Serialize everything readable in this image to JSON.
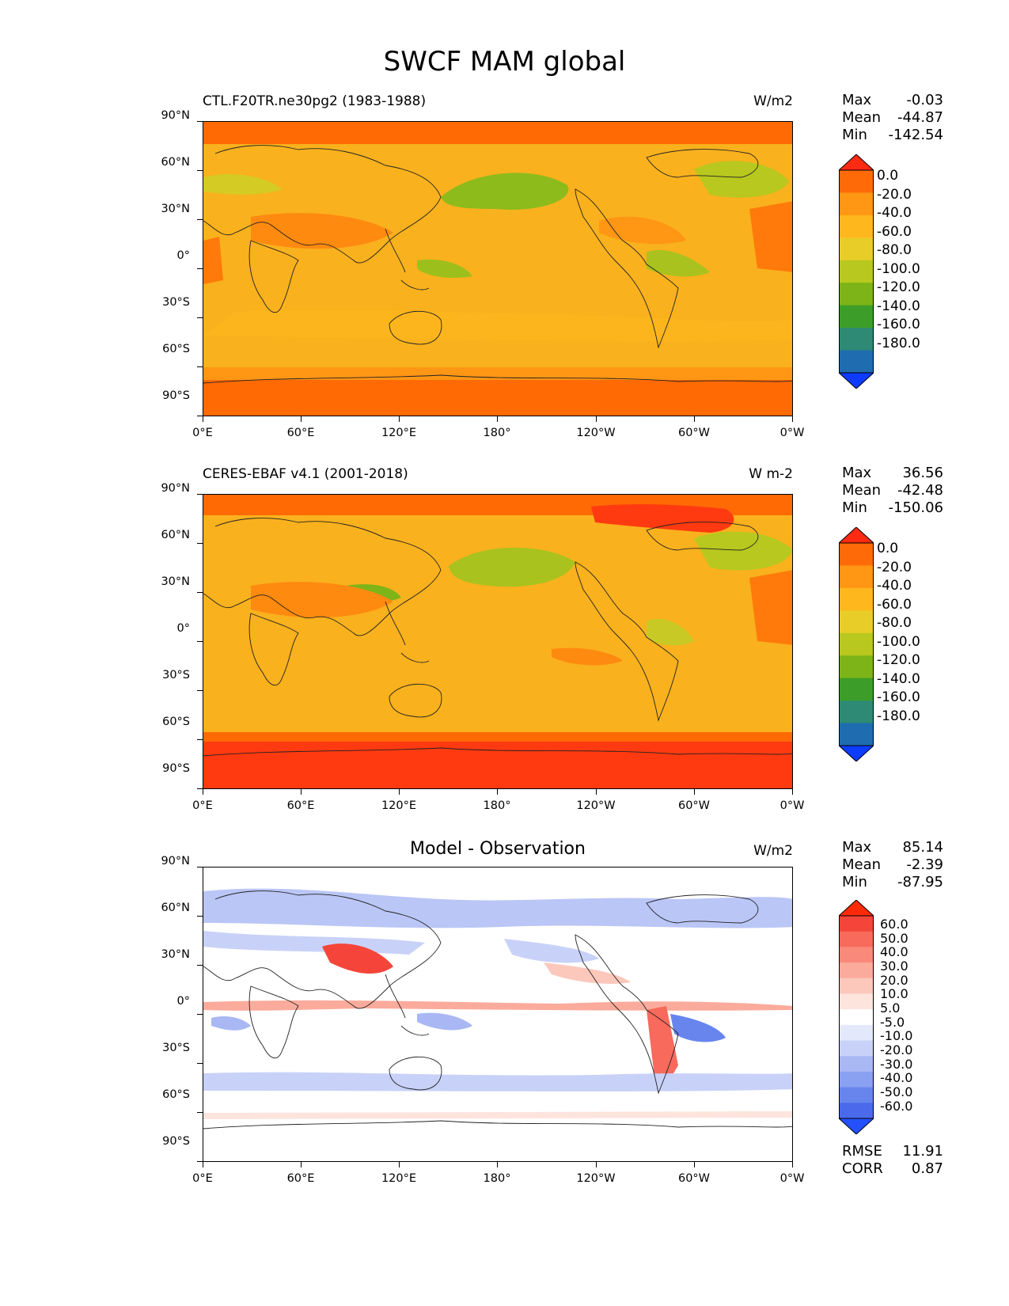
{
  "title": "SWCF MAM global",
  "axes": {
    "lat_labels": [
      "90°N",
      "60°N",
      "30°N",
      "0°",
      "30°S",
      "60°S",
      "90°S"
    ],
    "lon_labels": [
      "0°E",
      "60°E",
      "120°E",
      "180°",
      "120°W",
      "60°W",
      "0°W"
    ]
  },
  "panels": [
    {
      "id": "model",
      "left_title": "CTL.F20TR.ne30pg2 (1983-1988)",
      "units": "W/m2",
      "stats": {
        "max_label": "Max",
        "max": "-0.03",
        "mean_label": "Mean",
        "mean": "-44.87",
        "min_label": "Min",
        "min": "-142.54"
      },
      "colorbar": {
        "labels": [
          "0.0",
          "-20.0",
          "-40.0",
          "-60.0",
          "-80.0",
          "-100.0",
          "-120.0",
          "-140.0",
          "-160.0",
          "-180.0"
        ],
        "colors": [
          "#ff2a12",
          "#ff6a08",
          "#ff9614",
          "#ffb71e",
          "#e8cd28",
          "#b8c81e",
          "#7db418",
          "#3c9e28",
          "#2e8a74",
          "#1f6db0",
          "#0d3cff"
        ]
      },
      "map": {
        "ocean": "#f9b11d",
        "polar_band": "#ff6a05",
        "accent_low": "#9dbf1c"
      }
    },
    {
      "id": "obs",
      "left_title": "CERES-EBAF v4.1 (2001-2018)",
      "units": "W m-2",
      "stats": {
        "max_label": "Max",
        "max": "36.56",
        "mean_label": "Mean",
        "mean": "-42.48",
        "min_label": "Min",
        "min": "-150.06"
      },
      "colorbar": {
        "labels": [
          "0.0",
          "-20.0",
          "-40.0",
          "-60.0",
          "-80.0",
          "-100.0",
          "-120.0",
          "-140.0",
          "-160.0",
          "-180.0"
        ],
        "colors": [
          "#ff2a12",
          "#ff6a08",
          "#ff9614",
          "#ffb71e",
          "#e8cd28",
          "#b8c81e",
          "#7db418",
          "#3c9e28",
          "#2e8a74",
          "#1f6db0",
          "#0d3cff"
        ]
      },
      "map": {
        "ocean": "#f9b11d",
        "polar_band": "#ff3a10",
        "accent_low": "#a9c21e"
      }
    },
    {
      "id": "diff",
      "center_title": "Model - Observation",
      "units": "W/m2",
      "stats": {
        "max_label": "Max",
        "max": "85.14",
        "mean_label": "Mean",
        "mean": "-2.39",
        "min_label": "Min",
        "min": "-87.95"
      },
      "colorbar": {
        "labels": [
          "60.0",
          "50.0",
          "40.0",
          "30.0",
          "20.0",
          "10.0",
          "5.0",
          "-5.0",
          "-10.0",
          "-20.0",
          "-30.0",
          "-40.0",
          "-50.0",
          "-60.0"
        ],
        "colors": [
          "#ff2a0a",
          "#f5453a",
          "#f76a5c",
          "#f9897a",
          "#fbab9c",
          "#fcc8bc",
          "#fde4dd",
          "#ffffff",
          "#e3e8fb",
          "#c8d2f8",
          "#a9b8f4",
          "#8aa0f1",
          "#6885ee",
          "#4a6aeb",
          "#2450ff"
        ]
      },
      "rmse_label": "RMSE",
      "rmse": "11.91",
      "corr_label": "CORR",
      "corr": "0.87"
    }
  ]
}
